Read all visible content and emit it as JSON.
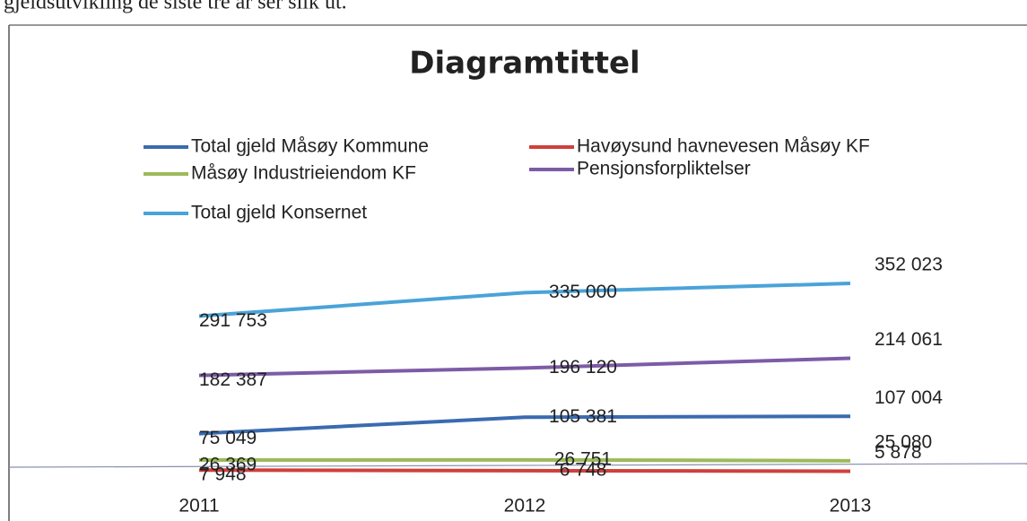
{
  "intro": "gjeldsutvikling de siste tre år ser slik ut.",
  "chart_data": {
    "type": "line",
    "title": "Diagramtittel",
    "categories": [
      "2011",
      "2012",
      "2013"
    ],
    "series": [
      {
        "name": "Total gjeld Måsøy Kommune",
        "color": "#3a6bb0",
        "values": [
          75049,
          105381,
          107004
        ],
        "value_labels": [
          "75 049",
          "105 381",
          "107 004"
        ]
      },
      {
        "name": "Havøysund havnevesen Måsøy KF",
        "color": "#d0403a",
        "values": [
          7948,
          6748,
          5878
        ],
        "value_labels": [
          "7 948",
          "6 748",
          "5 878"
        ]
      },
      {
        "name": "Måsøy Industrieiendom KF",
        "color": "#9bbb59",
        "values": [
          26369,
          26751,
          25080
        ],
        "value_labels": [
          "26 369",
          "26 751",
          "25 080"
        ]
      },
      {
        "name": "Pensjonsforpliktelser",
        "color": "#7d5ba6",
        "values": [
          182387,
          196120,
          214061
        ],
        "value_labels": [
          "182 387",
          "196 120",
          "214 061"
        ]
      },
      {
        "name": "Total gjeld Konsernet",
        "color": "#4aa3d8",
        "values": [
          291753,
          335000,
          352023
        ],
        "value_labels": [
          "291 753",
          "335 000",
          "352 023"
        ]
      }
    ],
    "ylim": [
      0,
      400000
    ]
  }
}
